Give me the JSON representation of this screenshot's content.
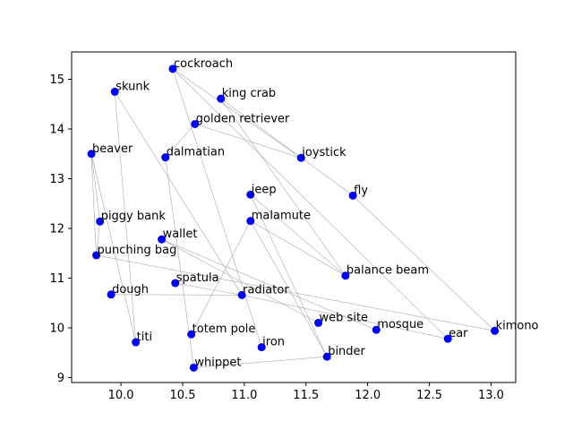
{
  "chart_data": {
    "type": "scatter",
    "title": "",
    "xlabel": "",
    "ylabel": "",
    "xlim": [
      9.6,
      13.2
    ],
    "ylim": [
      8.9,
      15.55
    ],
    "xticks": [
      10.0,
      10.5,
      11.0,
      11.5,
      12.0,
      12.5,
      13.0
    ],
    "yticks": [
      9,
      10,
      11,
      12,
      13,
      14,
      15
    ],
    "xtick_labels": [
      "10.0",
      "10.5",
      "11.0",
      "11.5",
      "12.0",
      "12.5",
      "13.0"
    ],
    "ytick_labels": [
      "9",
      "10",
      "11",
      "12",
      "13",
      "14",
      "15"
    ],
    "grid": false,
    "marker_color": "#0000ff",
    "edge_color": "#aaaaaa",
    "points": [
      {
        "label": "cockroach",
        "x": 10.42,
        "y": 15.21
      },
      {
        "label": "skunk",
        "x": 9.95,
        "y": 14.75
      },
      {
        "label": "king crab",
        "x": 10.81,
        "y": 14.61
      },
      {
        "label": "golden retriever",
        "x": 10.6,
        "y": 14.1
      },
      {
        "label": "beaver",
        "x": 9.76,
        "y": 13.5
      },
      {
        "label": "dalmatian",
        "x": 10.36,
        "y": 13.43
      },
      {
        "label": "joystick",
        "x": 11.46,
        "y": 13.42
      },
      {
        "label": "jeep",
        "x": 11.05,
        "y": 12.68
      },
      {
        "label": "fly",
        "x": 11.88,
        "y": 12.66
      },
      {
        "label": "piggy bank",
        "x": 9.83,
        "y": 12.14
      },
      {
        "label": "malamute",
        "x": 11.05,
        "y": 12.15
      },
      {
        "label": "wallet",
        "x": 10.33,
        "y": 11.78
      },
      {
        "label": "punching bag",
        "x": 9.8,
        "y": 11.46
      },
      {
        "label": "balance beam",
        "x": 11.82,
        "y": 11.05
      },
      {
        "label": "spatula",
        "x": 10.44,
        "y": 10.9
      },
      {
        "label": "dough",
        "x": 9.92,
        "y": 10.67
      },
      {
        "label": "radiator",
        "x": 10.98,
        "y": 10.66
      },
      {
        "label": "web site",
        "x": 11.6,
        "y": 10.1
      },
      {
        "label": "mosque",
        "x": 12.07,
        "y": 9.96
      },
      {
        "label": "kimono",
        "x": 13.03,
        "y": 9.94
      },
      {
        "label": "totem pole",
        "x": 10.57,
        "y": 9.87
      },
      {
        "label": "ear",
        "x": 12.65,
        "y": 9.78
      },
      {
        "label": "titi",
        "x": 10.12,
        "y": 9.71
      },
      {
        "label": "iron",
        "x": 11.14,
        "y": 9.61
      },
      {
        "label": "binder",
        "x": 11.67,
        "y": 9.42
      },
      {
        "label": "whippet",
        "x": 10.59,
        "y": 9.2
      }
    ],
    "edges": [
      [
        "cockroach",
        "joystick"
      ],
      [
        "cockroach",
        "iron"
      ],
      [
        "cockroach",
        "ear"
      ],
      [
        "skunk",
        "titi"
      ],
      [
        "skunk",
        "radiator"
      ],
      [
        "king crab",
        "fly"
      ],
      [
        "king crab",
        "balance beam"
      ],
      [
        "golden retriever",
        "dalmatian"
      ],
      [
        "golden retriever",
        "joystick"
      ],
      [
        "beaver",
        "piggy bank"
      ],
      [
        "beaver",
        "punching bag"
      ],
      [
        "beaver",
        "titi"
      ],
      [
        "dalmatian",
        "whippet"
      ],
      [
        "jeep",
        "balance beam"
      ],
      [
        "jeep",
        "binder"
      ],
      [
        "fly",
        "kimono"
      ],
      [
        "malamute",
        "totem pole"
      ],
      [
        "malamute",
        "balance beam"
      ],
      [
        "malamute",
        "binder"
      ],
      [
        "piggy bank",
        "punching bag"
      ],
      [
        "wallet",
        "web site"
      ],
      [
        "wallet",
        "mosque"
      ],
      [
        "punching bag",
        "kimono"
      ],
      [
        "spatula",
        "radiator"
      ],
      [
        "dough",
        "radiator"
      ],
      [
        "radiator",
        "ear"
      ],
      [
        "whippet",
        "binder"
      ]
    ]
  }
}
